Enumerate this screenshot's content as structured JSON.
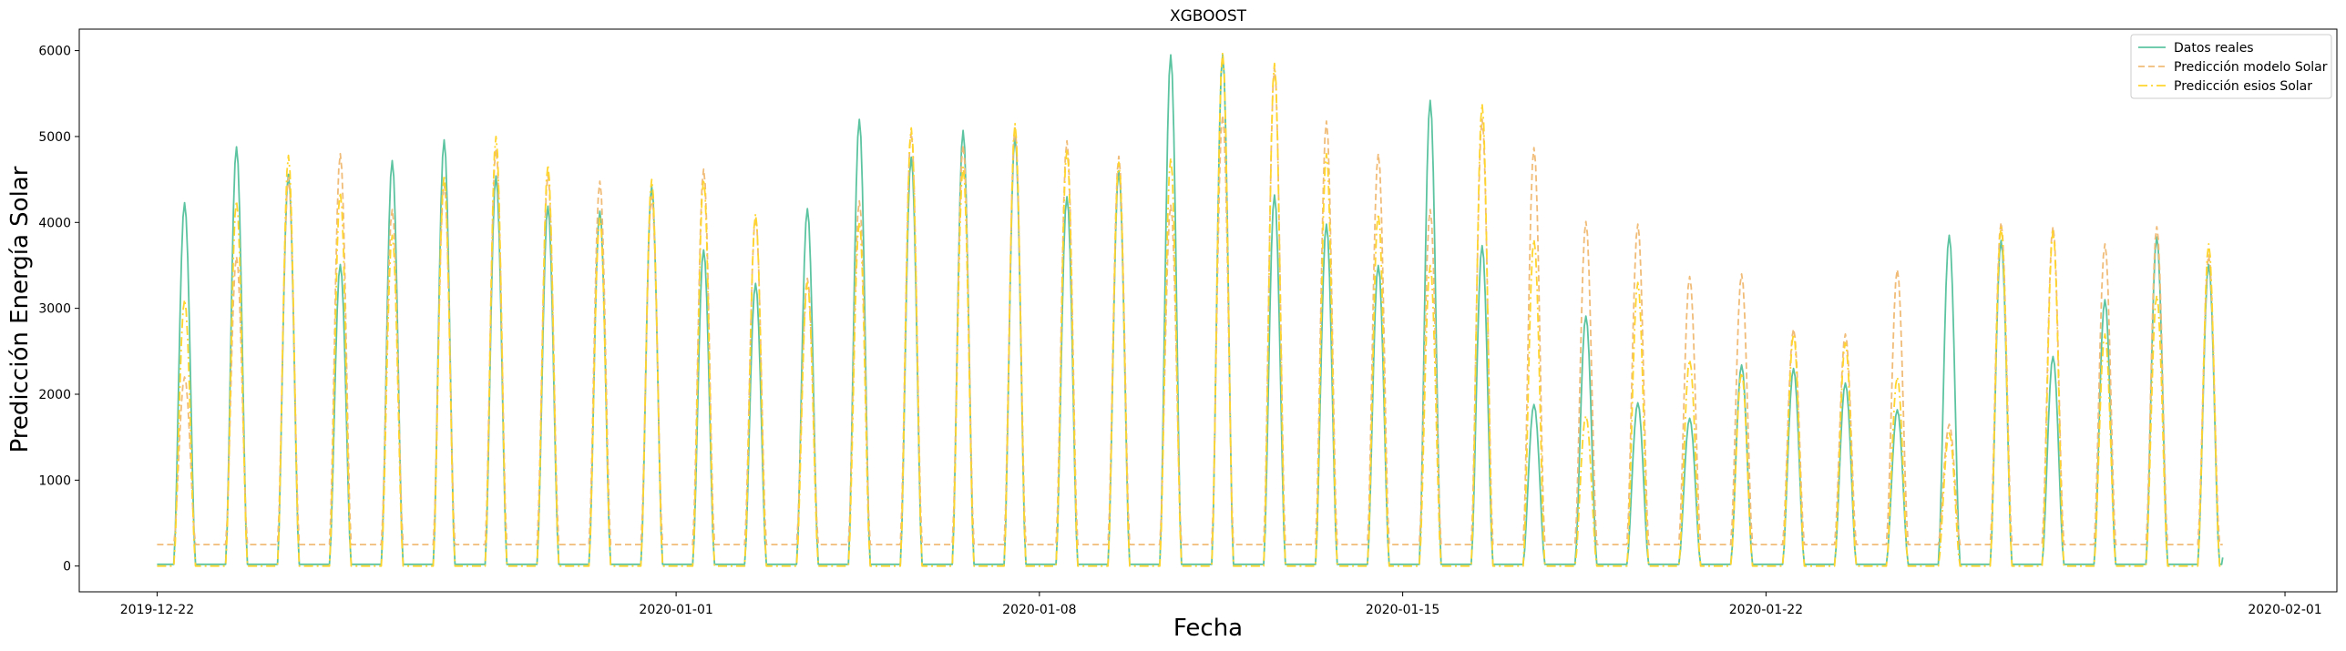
{
  "chart_data": {
    "type": "line",
    "title": "XGBOOST",
    "xlabel": "Fecha",
    "ylabel": "Predicción Energía Solar",
    "x_axis": {
      "kind": "date",
      "range": [
        "2019-12-20T12:00",
        "2020-02-02T00:00"
      ],
      "ticks": [
        "2019-12-22",
        "2020-01-01",
        "2020-01-08",
        "2020-01-15",
        "2020-01-22",
        "2020-02-01"
      ]
    },
    "y_axis": {
      "range": [
        -300,
        6250
      ],
      "ticks": [
        0,
        1000,
        2000,
        3000,
        4000,
        5000,
        6000
      ]
    },
    "grid": false,
    "legend": {
      "placement": "top-right",
      "entries": [
        "Datos reales",
        "Predicción modelo Solar",
        "Predicción esios Solar"
      ]
    },
    "series": [
      {
        "name": "Datos reales",
        "color": "#5cc4a0",
        "style": "solid",
        "night_level": 20,
        "daily_peaks": [
          {
            "date": "2019-12-22",
            "value": 4230
          },
          {
            "date": "2019-12-23",
            "value": 4880
          },
          {
            "date": "2019-12-24",
            "value": 4560
          },
          {
            "date": "2019-12-25",
            "value": 3510
          },
          {
            "date": "2019-12-26",
            "value": 4720
          },
          {
            "date": "2019-12-27",
            "value": 4960
          },
          {
            "date": "2019-12-28",
            "value": 4540
          },
          {
            "date": "2019-12-29",
            "value": 4190
          },
          {
            "date": "2019-12-30",
            "value": 4130
          },
          {
            "date": "2019-12-31",
            "value": 4420
          },
          {
            "date": "2020-01-01",
            "value": 3680
          },
          {
            "date": "2020-01-02",
            "value": 3290
          },
          {
            "date": "2020-01-03",
            "value": 4160
          },
          {
            "date": "2020-01-04",
            "value": 5200
          },
          {
            "date": "2020-01-05",
            "value": 4760
          },
          {
            "date": "2020-01-06",
            "value": 5070
          },
          {
            "date": "2020-01-07",
            "value": 5000
          },
          {
            "date": "2020-01-08",
            "value": 4300
          },
          {
            "date": "2020-01-09",
            "value": 4600
          },
          {
            "date": "2020-01-10",
            "value": 5950
          },
          {
            "date": "2020-01-11",
            "value": 5950
          },
          {
            "date": "2020-01-12",
            "value": 4320
          },
          {
            "date": "2020-01-13",
            "value": 3980
          },
          {
            "date": "2020-01-14",
            "value": 3500
          },
          {
            "date": "2020-01-15",
            "value": 5420
          },
          {
            "date": "2020-01-16",
            "value": 3730
          },
          {
            "date": "2020-01-17",
            "value": 1880
          },
          {
            "date": "2020-01-18",
            "value": 2910
          },
          {
            "date": "2020-01-19",
            "value": 1900
          },
          {
            "date": "2020-01-20",
            "value": 1720
          },
          {
            "date": "2020-01-21",
            "value": 2340
          },
          {
            "date": "2020-01-22",
            "value": 2300
          },
          {
            "date": "2020-01-23",
            "value": 2130
          },
          {
            "date": "2020-01-24",
            "value": 1820
          },
          {
            "date": "2020-01-25",
            "value": 3850
          },
          {
            "date": "2020-01-26",
            "value": 3790
          },
          {
            "date": "2020-01-27",
            "value": 2440
          },
          {
            "date": "2020-01-28",
            "value": 3100
          },
          {
            "date": "2020-01-29",
            "value": 3830
          },
          {
            "date": "2020-01-30",
            "value": 3510
          }
        ]
      },
      {
        "name": "Predicción modelo Solar",
        "color": "#f0bc78",
        "style": "dashed",
        "night_level": 250,
        "daily_peaks": [
          {
            "date": "2019-12-22",
            "value": 2200
          },
          {
            "date": "2019-12-23",
            "value": 3600
          },
          {
            "date": "2019-12-24",
            "value": 4520
          },
          {
            "date": "2019-12-25",
            "value": 4800
          },
          {
            "date": "2019-12-26",
            "value": 4150
          },
          {
            "date": "2019-12-27",
            "value": 4450
          },
          {
            "date": "2019-12-28",
            "value": 4850
          },
          {
            "date": "2019-12-29",
            "value": 4550
          },
          {
            "date": "2019-12-30",
            "value": 4480
          },
          {
            "date": "2019-12-31",
            "value": 4300
          },
          {
            "date": "2020-01-01",
            "value": 4620
          },
          {
            "date": "2020-01-02",
            "value": 4060
          },
          {
            "date": "2020-01-03",
            "value": 3350
          },
          {
            "date": "2020-01-04",
            "value": 4250
          },
          {
            "date": "2020-01-05",
            "value": 5050
          },
          {
            "date": "2020-01-06",
            "value": 4900
          },
          {
            "date": "2020-01-07",
            "value": 5100
          },
          {
            "date": "2020-01-08",
            "value": 4950
          },
          {
            "date": "2020-01-09",
            "value": 4770
          },
          {
            "date": "2020-01-10",
            "value": 4200
          },
          {
            "date": "2020-01-11",
            "value": 5250
          },
          {
            "date": "2020-01-12",
            "value": 5800
          },
          {
            "date": "2020-01-13",
            "value": 5180
          },
          {
            "date": "2020-01-14",
            "value": 4800
          },
          {
            "date": "2020-01-15",
            "value": 4150
          },
          {
            "date": "2020-01-16",
            "value": 5200
          },
          {
            "date": "2020-01-17",
            "value": 4870
          },
          {
            "date": "2020-01-18",
            "value": 4010
          },
          {
            "date": "2020-01-19",
            "value": 3980
          },
          {
            "date": "2020-01-20",
            "value": 3370
          },
          {
            "date": "2020-01-21",
            "value": 3400
          },
          {
            "date": "2020-01-22",
            "value": 2760
          },
          {
            "date": "2020-01-23",
            "value": 2700
          },
          {
            "date": "2020-01-24",
            "value": 3450
          },
          {
            "date": "2020-01-25",
            "value": 1650
          },
          {
            "date": "2020-01-26",
            "value": 4000
          },
          {
            "date": "2020-01-27",
            "value": 3950
          },
          {
            "date": "2020-01-28",
            "value": 3750
          },
          {
            "date": "2020-01-29",
            "value": 3950
          },
          {
            "date": "2020-01-30",
            "value": 3620
          }
        ]
      },
      {
        "name": "Predicción esios Solar",
        "color": "#ffd52e",
        "style": "dashdot",
        "night_level": 0,
        "daily_peaks": [
          {
            "date": "2019-12-22",
            "value": 3100
          },
          {
            "date": "2019-12-23",
            "value": 4250
          },
          {
            "date": "2019-12-24",
            "value": 4780
          },
          {
            "date": "2019-12-25",
            "value": 4350
          },
          {
            "date": "2019-12-26",
            "value": 3850
          },
          {
            "date": "2019-12-27",
            "value": 4550
          },
          {
            "date": "2019-12-28",
            "value": 5000
          },
          {
            "date": "2019-12-29",
            "value": 4670
          },
          {
            "date": "2019-12-30",
            "value": 4050
          },
          {
            "date": "2019-12-31",
            "value": 4500
          },
          {
            "date": "2020-01-01",
            "value": 4500
          },
          {
            "date": "2020-01-02",
            "value": 4100
          },
          {
            "date": "2020-01-03",
            "value": 3300
          },
          {
            "date": "2020-01-04",
            "value": 4000
          },
          {
            "date": "2020-01-05",
            "value": 5100
          },
          {
            "date": "2020-01-06",
            "value": 4650
          },
          {
            "date": "2020-01-07",
            "value": 5150
          },
          {
            "date": "2020-01-08",
            "value": 4850
          },
          {
            "date": "2020-01-09",
            "value": 4700
          },
          {
            "date": "2020-01-10",
            "value": 4750
          },
          {
            "date": "2020-01-11",
            "value": 5980
          },
          {
            "date": "2020-01-12",
            "value": 5850
          },
          {
            "date": "2020-01-13",
            "value": 4800
          },
          {
            "date": "2020-01-14",
            "value": 4100
          },
          {
            "date": "2020-01-15",
            "value": 3500
          },
          {
            "date": "2020-01-16",
            "value": 5380
          },
          {
            "date": "2020-01-17",
            "value": 3800
          },
          {
            "date": "2020-01-18",
            "value": 1750
          },
          {
            "date": "2020-01-19",
            "value": 3300
          },
          {
            "date": "2020-01-20",
            "value": 2400
          },
          {
            "date": "2020-01-21",
            "value": 2250
          },
          {
            "date": "2020-01-22",
            "value": 2700
          },
          {
            "date": "2020-01-23",
            "value": 2600
          },
          {
            "date": "2020-01-24",
            "value": 2200
          },
          {
            "date": "2020-01-25",
            "value": 1550
          },
          {
            "date": "2020-01-26",
            "value": 3950
          },
          {
            "date": "2020-01-27",
            "value": 3900
          },
          {
            "date": "2020-01-28",
            "value": 2700
          },
          {
            "date": "2020-01-29",
            "value": 3150
          },
          {
            "date": "2020-01-30",
            "value": 3750
          }
        ]
      }
    ]
  }
}
